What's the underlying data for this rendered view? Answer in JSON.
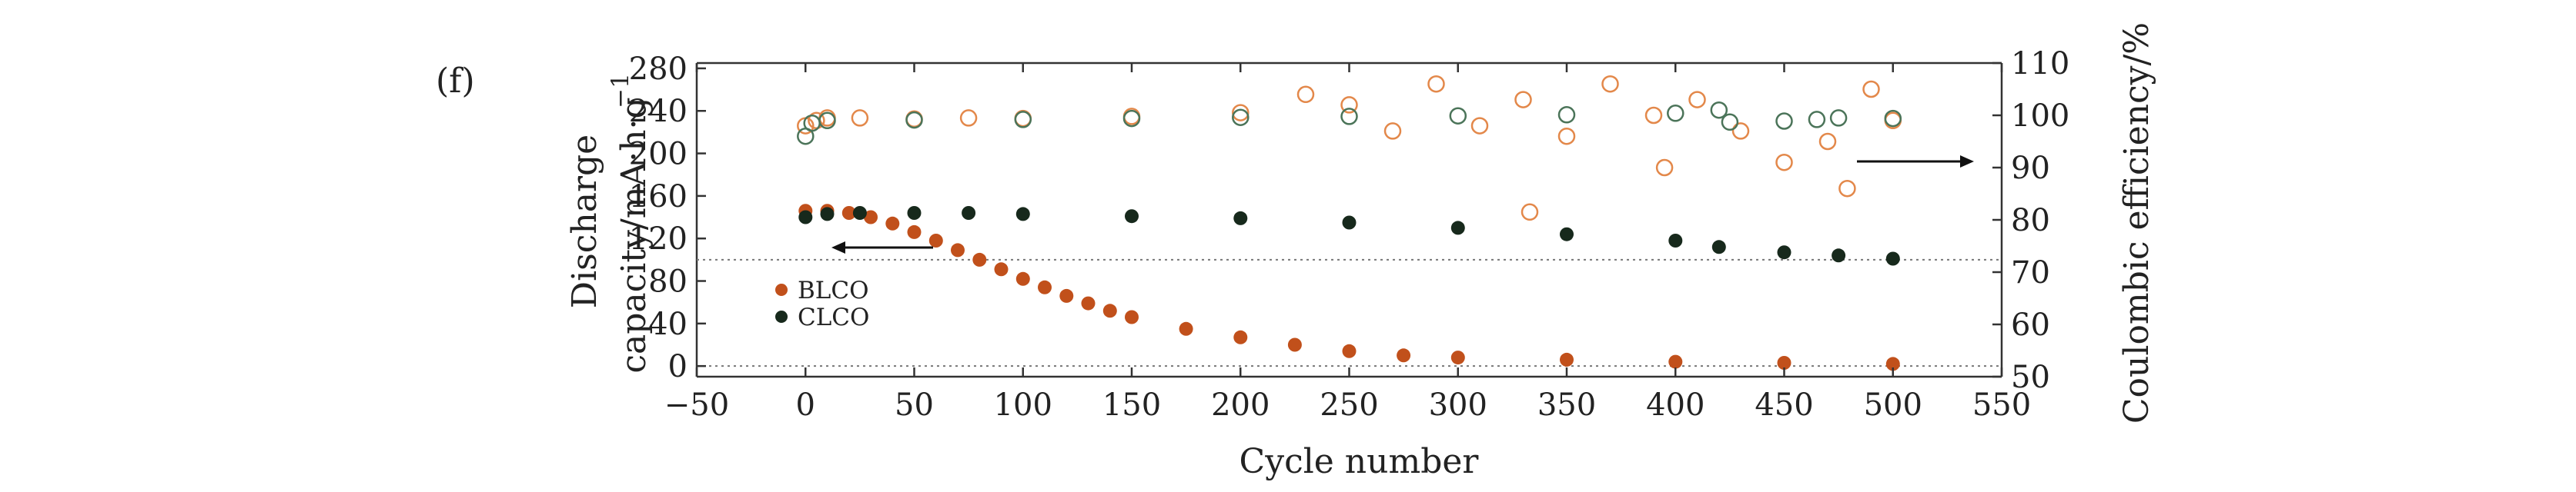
{
  "panel_label": "(f)",
  "chart_data": {
    "type": "scatter",
    "xlabel": "Cycle number",
    "ylabel_lines": [
      "Discharge",
      "capacity/mA·h·g"
    ],
    "ylabel_superscript": "−1",
    "y2label": "Coulombic efficiency/%",
    "xlim": [
      -50,
      550
    ],
    "ylim": [
      -10,
      285
    ],
    "y2lim": [
      50,
      110
    ],
    "xticks": [
      "−50",
      "0",
      "50",
      "100",
      "150",
      "200",
      "250",
      "300",
      "350",
      "400",
      "450",
      "500",
      "550"
    ],
    "yticks": [
      "0",
      "40",
      "80",
      "120",
      "160",
      "200",
      "240",
      "280"
    ],
    "y2ticks": [
      "50",
      "60",
      "70",
      "80",
      "90",
      "100",
      "110"
    ],
    "reference_lines": [
      {
        "axis": "y",
        "value": 0,
        "style": "dotted"
      },
      {
        "axis": "y",
        "value": 100,
        "style": "dotted"
      }
    ],
    "series": [
      {
        "name": "BLCO",
        "kind": "capacity",
        "axis": "left",
        "color": "#c1501b",
        "marker": "filled-circle",
        "x": [
          0,
          10,
          20,
          30,
          40,
          50,
          60,
          70,
          80,
          90,
          100,
          110,
          120,
          130,
          140,
          150,
          175,
          200,
          225,
          250,
          275,
          300,
          350,
          400,
          450,
          500
        ],
        "y": [
          146,
          146,
          144,
          140,
          134,
          126,
          118,
          109,
          100,
          91,
          82,
          74,
          66,
          59,
          52,
          46,
          35,
          27,
          20,
          14,
          10,
          8,
          6,
          4,
          3,
          2
        ]
      },
      {
        "name": "CLCO",
        "kind": "capacity",
        "axis": "left",
        "color": "#17291c",
        "marker": "filled-circle",
        "x": [
          0,
          10,
          25,
          50,
          75,
          100,
          150,
          200,
          250,
          300,
          350,
          400,
          420,
          450,
          475,
          500
        ],
        "y": [
          140,
          143,
          144,
          144,
          144,
          143,
          141,
          139,
          135,
          130,
          124,
          118,
          112,
          107,
          104,
          101
        ]
      },
      {
        "name": "BLCO",
        "kind": "coulombic_efficiency",
        "axis": "right",
        "color": "#e3884a",
        "marker": "open-circle",
        "x": [
          0,
          5,
          10,
          25,
          50,
          75,
          100,
          150,
          200,
          230,
          250,
          270,
          290,
          310,
          330,
          333,
          350,
          370,
          390,
          395,
          410,
          430,
          450,
          470,
          479,
          490,
          500
        ],
        "y": [
          98,
          99,
          99.5,
          99.5,
          99.3,
          99.5,
          99.4,
          99.8,
          100.5,
          104,
          102,
          97,
          106,
          98,
          103,
          81.5,
          96,
          106,
          100,
          90,
          103,
          97,
          91,
          95,
          86,
          105,
          99
        ]
      },
      {
        "name": "CLCO",
        "kind": "coulombic_efficiency",
        "axis": "right",
        "color": "#4b7459",
        "marker": "open-circle",
        "x": [
          0,
          3,
          10,
          50,
          100,
          150,
          200,
          250,
          300,
          350,
          400,
          420,
          425,
          450,
          465,
          475,
          500
        ],
        "y": [
          96,
          98.5,
          99,
          99.1,
          99.2,
          99.4,
          99.6,
          99.8,
          99.9,
          100.1,
          100.4,
          101,
          98.7,
          98.9,
          99.2,
          99.5,
          99.4
        ]
      }
    ],
    "legend": {
      "position": "left-middle",
      "entries": [
        {
          "label": "BLCO",
          "color": "#c1501b"
        },
        {
          "label": "CLCO",
          "color": "#17291c"
        }
      ]
    },
    "annotations": [
      {
        "type": "arrow",
        "direction": "left",
        "meaning": "capacity series read on left axis"
      },
      {
        "type": "arrow",
        "direction": "right",
        "meaning": "coulombic efficiency series read on right axis"
      }
    ]
  }
}
